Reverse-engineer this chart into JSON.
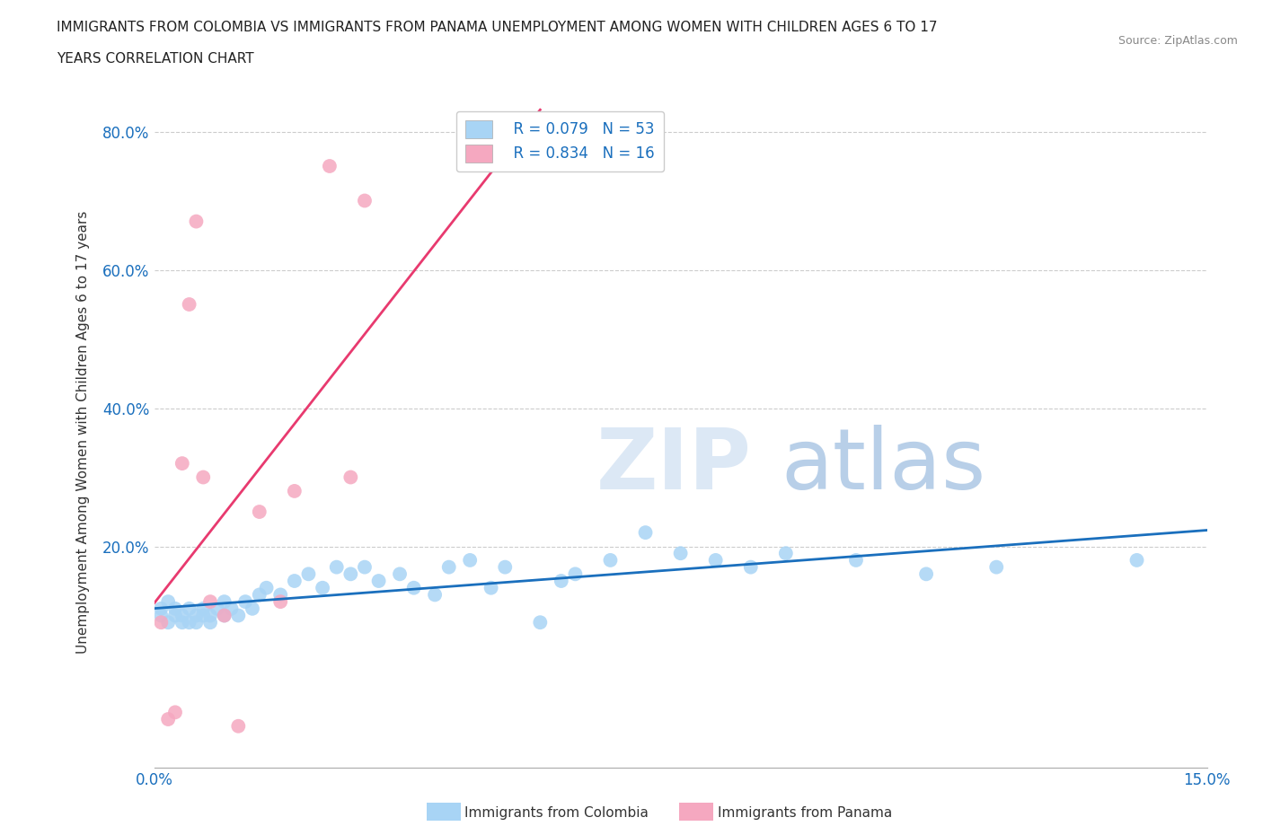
{
  "title_line1": "IMMIGRANTS FROM COLOMBIA VS IMMIGRANTS FROM PANAMA UNEMPLOYMENT AMONG WOMEN WITH CHILDREN AGES 6 TO 17",
  "title_line2": "YEARS CORRELATION CHART",
  "source": "Source: ZipAtlas.com",
  "ylabel": "Unemployment Among Women with Children Ages 6 to 17 years",
  "xlim": [
    0.0,
    0.15
  ],
  "ylim": [
    -0.12,
    0.85
  ],
  "colombia_color": "#a8d4f5",
  "panama_color": "#f5a8c0",
  "trendline_colombia_color": "#1a6fbd",
  "trendline_panama_color": "#e83a6f",
  "legend_r_colombia": "R = 0.079",
  "legend_n_colombia": "N = 53",
  "legend_r_panama": "R = 0.834",
  "legend_n_panama": "N = 16",
  "colombia_x": [
    0.001,
    0.001,
    0.002,
    0.002,
    0.003,
    0.003,
    0.004,
    0.004,
    0.005,
    0.005,
    0.006,
    0.006,
    0.007,
    0.007,
    0.008,
    0.008,
    0.009,
    0.01,
    0.01,
    0.011,
    0.012,
    0.013,
    0.014,
    0.015,
    0.016,
    0.018,
    0.02,
    0.022,
    0.024,
    0.026,
    0.028,
    0.03,
    0.032,
    0.035,
    0.037,
    0.04,
    0.042,
    0.045,
    0.048,
    0.05,
    0.055,
    0.058,
    0.06,
    0.065,
    0.07,
    0.075,
    0.08,
    0.085,
    0.09,
    0.1,
    0.11,
    0.12,
    0.14
  ],
  "colombia_y": [
    0.1,
    0.11,
    0.09,
    0.12,
    0.1,
    0.11,
    0.09,
    0.1,
    0.11,
    0.09,
    0.1,
    0.09,
    0.11,
    0.1,
    0.09,
    0.1,
    0.11,
    0.12,
    0.1,
    0.11,
    0.1,
    0.12,
    0.11,
    0.13,
    0.14,
    0.13,
    0.15,
    0.16,
    0.14,
    0.17,
    0.16,
    0.17,
    0.15,
    0.16,
    0.14,
    0.13,
    0.17,
    0.18,
    0.14,
    0.17,
    0.09,
    0.15,
    0.16,
    0.18,
    0.22,
    0.19,
    0.18,
    0.17,
    0.19,
    0.18,
    0.16,
    0.17,
    0.18
  ],
  "panama_x": [
    0.001,
    0.002,
    0.003,
    0.004,
    0.005,
    0.006,
    0.007,
    0.008,
    0.01,
    0.012,
    0.015,
    0.018,
    0.02,
    0.025,
    0.028,
    0.03
  ],
  "panama_y": [
    0.09,
    -0.05,
    -0.04,
    0.32,
    0.55,
    0.67,
    0.3,
    0.12,
    0.1,
    -0.06,
    0.25,
    0.12,
    0.28,
    0.75,
    0.3,
    0.7
  ]
}
